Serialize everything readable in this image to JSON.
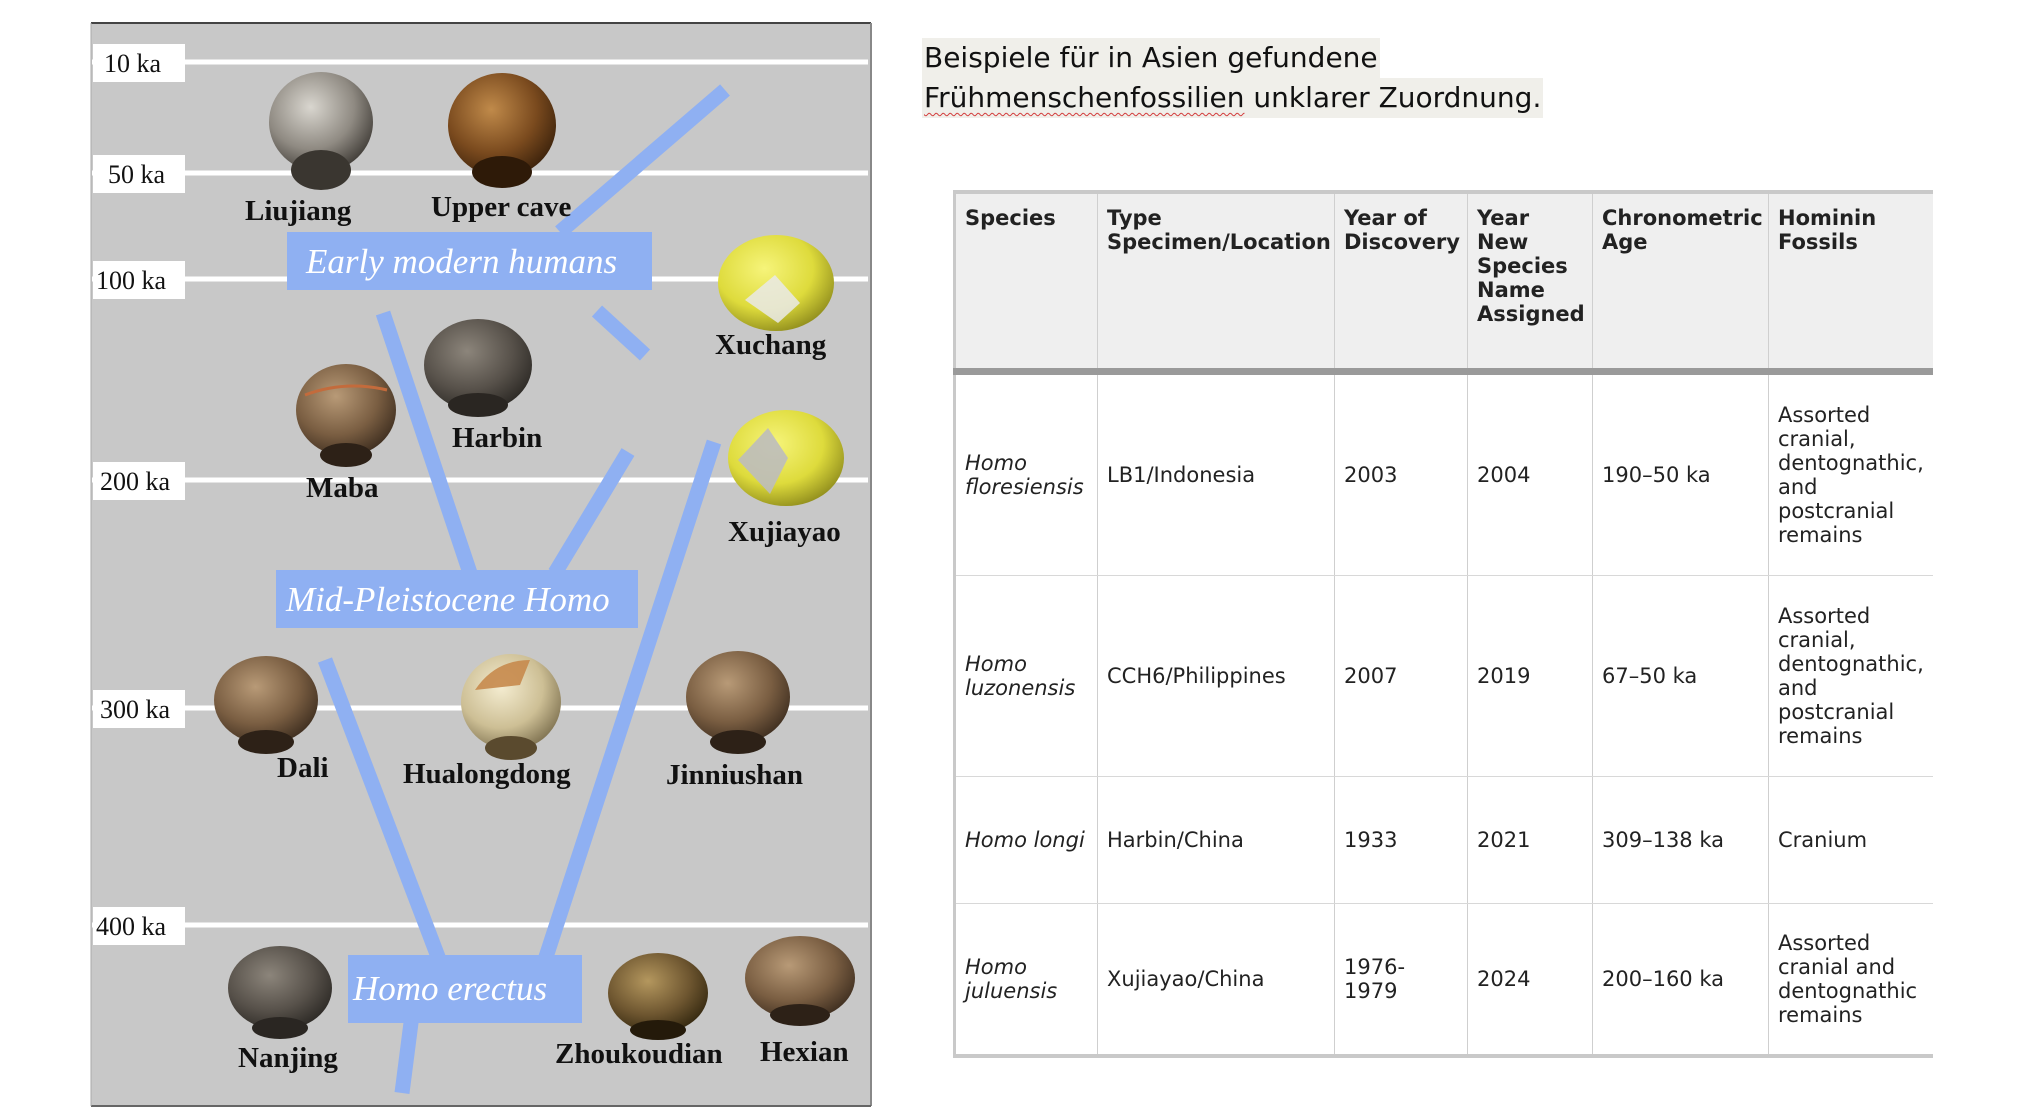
{
  "figure": {
    "time_labels": [
      "10 ka",
      "50 ka",
      "100 ka",
      "200 ka",
      "300 ka",
      "400 ka"
    ],
    "group_labels": {
      "early_modern": "Early modern humans",
      "mid_pleistocene": "Mid-Pleistocene Homo",
      "erectus": "Homo erectus"
    },
    "skulls": {
      "liujiang": "Liujiang",
      "upper_cave": "Upper cave",
      "xuchang": "Xuchang",
      "harbin": "Harbin",
      "maba": "Maba",
      "xujiayao": "Xujiayao",
      "dali": "Dali",
      "hualongdong": "Hualongdong",
      "jinniushan": "Jinniushan",
      "nanjing": "Nanjing",
      "zhoukoudian": "Zhoukoudian",
      "hexian": "Hexian"
    },
    "colors": {
      "background": "#c9c9c9",
      "branch": "#8fb0f2",
      "label_box": "#8fb0f2",
      "reconstruction": "#e3e24a"
    }
  },
  "heading": {
    "line1": "Beispiele für in Asien gefundene",
    "line2_word": "Frühmenschenfossilien",
    "line2_rest": " unklarer Zuordnung."
  },
  "table": {
    "headers": {
      "species": "Species",
      "type_specimen": "Type Specimen/Location",
      "year_discovery": "Year of Discovery",
      "year_named": "Year New Species Name Assigned",
      "age": "Chronometric Age",
      "fossils": "Hominin Fossils"
    },
    "rows": [
      {
        "species": "Homo floresiensis",
        "type_specimen": "LB1/Indonesia",
        "year_discovery": "2003",
        "year_named": "2004",
        "age": "190–50 ka",
        "fossils": "Assorted cranial, dentognathic, and postcranial remains"
      },
      {
        "species": "Homo luzonensis",
        "type_specimen": "CCH6/Philippines",
        "year_discovery": "2007",
        "year_named": "2019",
        "age": "67–50 ka",
        "fossils": "Assorted cranial, dentognathic, and postcranial remains"
      },
      {
        "species": "Homo longi",
        "type_specimen": "Harbin/China",
        "year_discovery": "1933",
        "year_named": "2021",
        "age": "309–138 ka",
        "fossils": "Cranium"
      },
      {
        "species": "Homo juluensis",
        "type_specimen": "Xujiayao/China",
        "year_discovery": "1976-1979",
        "year_named": "2024",
        "age": "200–160 ka",
        "fossils": "Assorted cranial and dentognathic remains"
      }
    ]
  }
}
